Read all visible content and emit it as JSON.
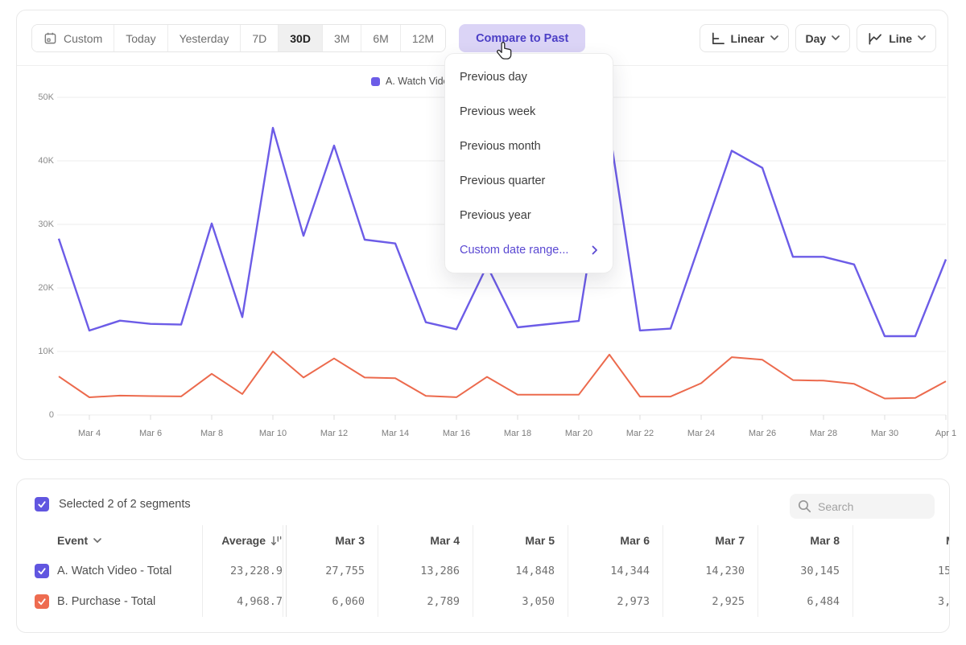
{
  "colors": {
    "accent_purple": "#6c5ce7",
    "accent_orange": "#ec6a4d",
    "compare_button_bg": "#dbd4f6",
    "compare_button_text": "#4c3fc6",
    "menu_accent_text": "#5a48d2",
    "checkbox_purple": "#6156e0",
    "checkbox_orange": "#ee6c50"
  },
  "toolbar": {
    "ranges": [
      "Custom",
      "Today",
      "Yesterday",
      "7D",
      "30D",
      "3M",
      "6M",
      "12M"
    ],
    "selected_range": "30D",
    "compare_label": "Compare to Past",
    "scale_label": "Linear",
    "interval_label": "Day",
    "chart_type_label": "Line"
  },
  "compare_menu": {
    "items": [
      "Previous day",
      "Previous week",
      "Previous month",
      "Previous quarter",
      "Previous year"
    ],
    "custom_label": "Custom date range..."
  },
  "chart_data": {
    "type": "line",
    "title": "",
    "xlabel": "",
    "ylabel": "",
    "ylim": [
      0,
      50000
    ],
    "grid": true,
    "legend_position": "top-center",
    "y_tick_labels": [
      "50K",
      "40K",
      "30K",
      "20K",
      "10K",
      "0"
    ],
    "x": [
      "Mar 3",
      "Mar 4",
      "Mar 5",
      "Mar 6",
      "Mar 7",
      "Mar 8",
      "Mar 9",
      "Mar 10",
      "Mar 11",
      "Mar 12",
      "Mar 13",
      "Mar 14",
      "Mar 15",
      "Mar 16",
      "Mar 17",
      "Mar 18",
      "Mar 19",
      "Mar 20",
      "Mar 21",
      "Mar 22",
      "Mar 23",
      "Mar 24",
      "Mar 25",
      "Mar 26",
      "Mar 27",
      "Mar 28",
      "Mar 29",
      "Mar 30",
      "Mar 31",
      "Apr 1"
    ],
    "x_tick_labels": [
      "Mar 4",
      "Mar 6",
      "Mar 8",
      "Mar 10",
      "Mar 12",
      "Mar 14",
      "Mar 16",
      "Mar 18",
      "Mar 20",
      "Mar 22",
      "Mar 24",
      "Mar 26",
      "Mar 28",
      "Mar 30",
      "Apr 1"
    ],
    "series": [
      {
        "name": "A. Watch Video",
        "color": "#6c5ce7",
        "values": [
          27755,
          13286,
          14848,
          14344,
          14230,
          30145,
          15400,
          45200,
          28200,
          42400,
          27600,
          27000,
          14600,
          13500,
          23500,
          13800,
          14300,
          14800,
          44900,
          13300,
          13600,
          27600,
          41600,
          38900,
          24900,
          24900,
          23700,
          12400,
          12400,
          24500
        ]
      },
      {
        "name": "B. Purchase",
        "color": "#ec6a4d",
        "values": [
          6060,
          2789,
          3050,
          2973,
          2925,
          6484,
          3300,
          10000,
          5900,
          8900,
          5900,
          5800,
          3000,
          2800,
          6000,
          3200,
          3200,
          3200,
          9500,
          2900,
          2900,
          5000,
          9100,
          8700,
          5500,
          5400,
          4900,
          2600,
          2700,
          5300
        ]
      }
    ]
  },
  "segments": {
    "selected_text": "Selected 2 of 2 segments",
    "search_placeholder": "Search"
  },
  "table": {
    "event_header": "Event",
    "average_header": "Average",
    "columns": [
      "Mar 3",
      "Mar 4",
      "Mar 5",
      "Mar 6",
      "Mar 7",
      "Mar 8",
      "M"
    ],
    "rows": [
      {
        "label": "A. Watch Video - Total",
        "checkbox_color": "#6156e0",
        "average": "23,228.9",
        "values": [
          "27,755",
          "13,286",
          "14,848",
          "14,344",
          "14,230",
          "30,145",
          "15,"
        ]
      },
      {
        "label": "B. Purchase - Total",
        "checkbox_color": "#ee6c50",
        "average": "4,968.7",
        "values": [
          "6,060",
          "2,789",
          "3,050",
          "2,973",
          "2,925",
          "6,484",
          "3,"
        ]
      }
    ]
  }
}
